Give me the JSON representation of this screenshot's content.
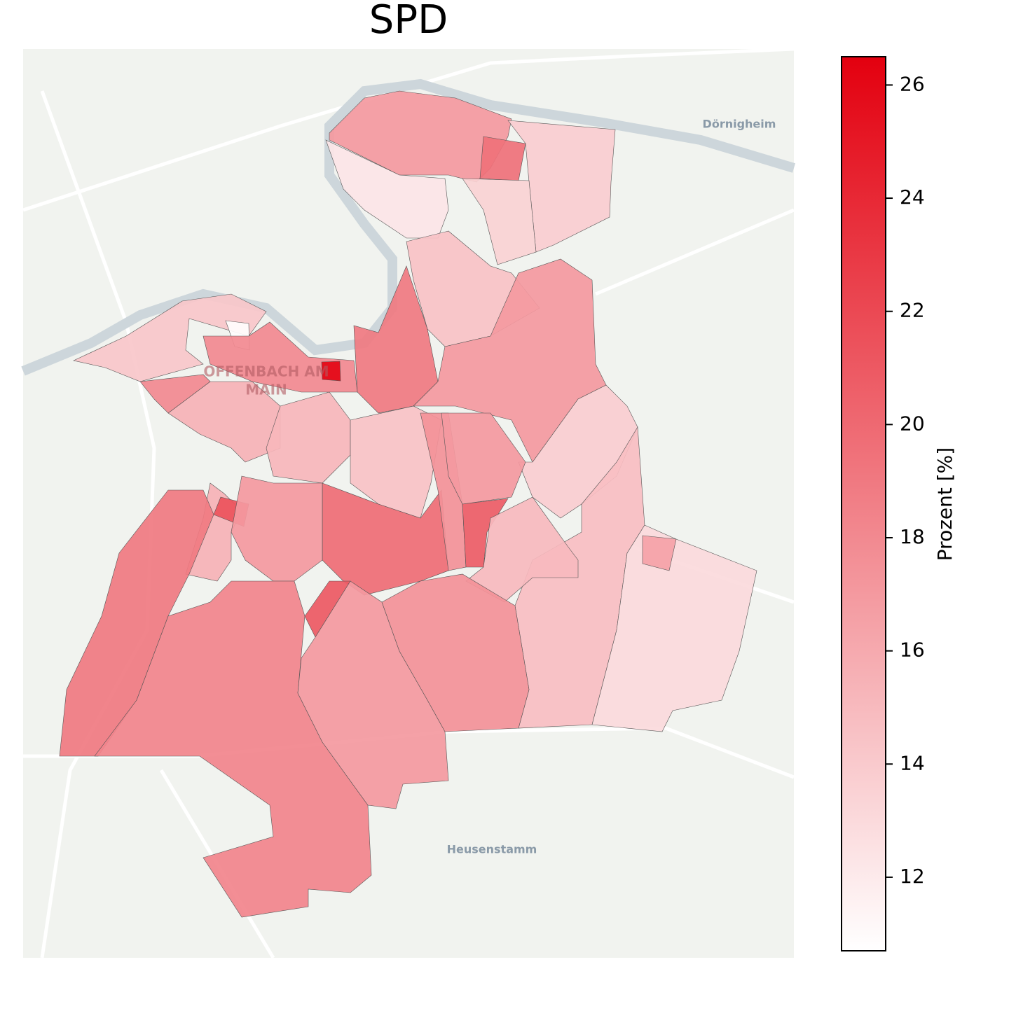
{
  "chart_data": {
    "type": "choropleth",
    "title": "SPD",
    "colorbar_label": "Prozent [%]",
    "clim": [
      10.7,
      26.5
    ],
    "ticks": [
      12,
      14,
      16,
      18,
      20,
      22,
      24,
      26
    ],
    "colors": [
      "#ffffff",
      "#e3000f"
    ],
    "map_labels": [
      "Dörnigheim",
      "Heusenstamm",
      "OFFENBACH AM",
      "MAIN"
    ],
    "values": [
      17,
      12.3,
      13.8,
      19.5,
      13.5,
      14.2,
      10.8,
      18,
      26.2,
      19,
      14.5,
      17,
      13.8,
      14.7,
      13,
      16.5,
      15.5,
      15.2,
      14.5,
      19.8,
      17.5,
      17,
      20.8,
      15,
      15.5,
      21.5,
      17,
      21,
      19,
      18.3,
      17,
      17.5,
      18
    ]
  }
}
